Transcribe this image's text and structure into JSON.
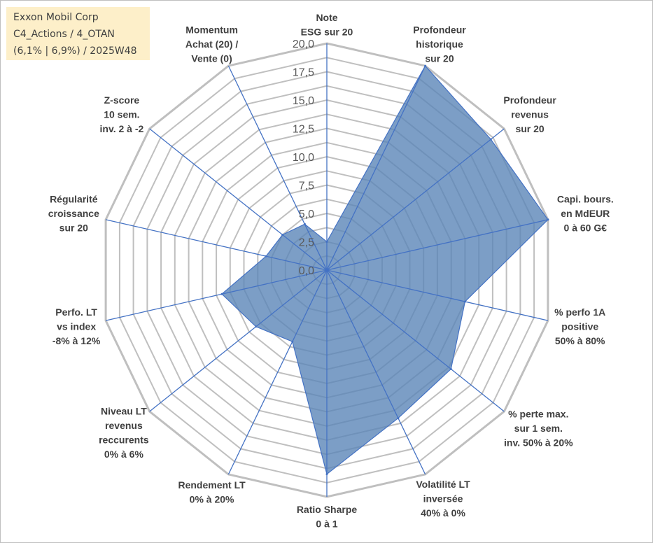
{
  "info": {
    "line1": "Exxon Mobil Corp",
    "line2": "C4_Actions / 4_OTAN",
    "line3": "(6,1% | 6,9%) / 2025W48"
  },
  "colors": {
    "fill": "#5b86b8",
    "stroke": "#4472c4",
    "grid": "#bfbfbf"
  },
  "chart_data": {
    "type": "radar",
    "rlim": [
      0,
      20
    ],
    "ticks": [
      "0,0",
      "2,5",
      "5,0",
      "7,5",
      "10,0",
      "12,5",
      "15,0",
      "17,5",
      "20,0"
    ],
    "grid": true,
    "categories": [
      [
        "Note",
        "ESG sur 20"
      ],
      [
        "Profondeur",
        "historique",
        "sur 20"
      ],
      [
        "Profondeur",
        "revenus",
        "sur 20"
      ],
      [
        "Capi. bours.",
        "en MdEUR",
        "0 à 60 G€"
      ],
      [
        "% perfo 1A",
        "positive",
        "50% à 80%"
      ],
      [
        "% perte max.",
        "sur 1 sem.",
        "inv. 50% à 20%"
      ],
      [
        "Volatilité LT",
        "inversée",
        "40% à 0%"
      ],
      [
        "Ratio Sharpe",
        "0 à 1"
      ],
      [
        "Rendement LT",
        "0% à 20%"
      ],
      [
        "Niveau LT",
        "revenus",
        "reccurents",
        "0% à 6%"
      ],
      [
        "Perfo. LT",
        "vs index",
        "-8% à 12%"
      ],
      [
        "Régularité",
        "croissance",
        "sur 20"
      ],
      [
        "Z-score",
        "10 sem.",
        "inv. 2 à -2"
      ],
      [
        "Momentum",
        "Achat (20) /",
        "Vente (0)"
      ]
    ],
    "values": [
      2.5,
      20,
      18.5,
      20,
      12.5,
      14,
      14.5,
      18,
      7,
      8,
      9.5,
      5.5,
      5,
      4.5
    ]
  }
}
